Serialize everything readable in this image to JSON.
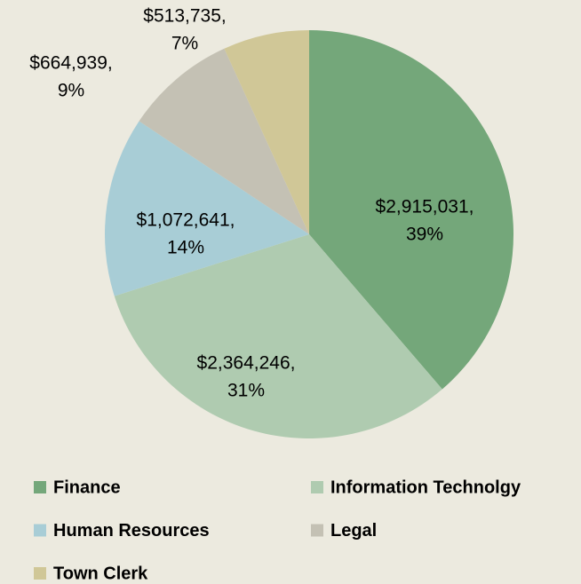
{
  "chart_data": {
    "type": "pie",
    "categories": [
      "Finance",
      "Information Technolgy",
      "Human Resources",
      "Legal",
      "Town Clerk"
    ],
    "values": [
      2915031,
      2364246,
      1072641,
      664939,
      513735
    ],
    "value_labels": [
      [
        "$2,915,031,",
        "39%"
      ],
      [
        "$2,364,246,",
        "31%"
      ],
      [
        "$1,072,641,",
        "14%"
      ],
      [
        "$664,939,",
        "9%"
      ],
      [
        "$513,735,",
        "7%"
      ]
    ],
    "colors": [
      "#74a77a",
      "#afcbb0",
      "#a8cdd6",
      "#c4c1b4",
      "#d0c797"
    ],
    "legend": "bottom"
  }
}
